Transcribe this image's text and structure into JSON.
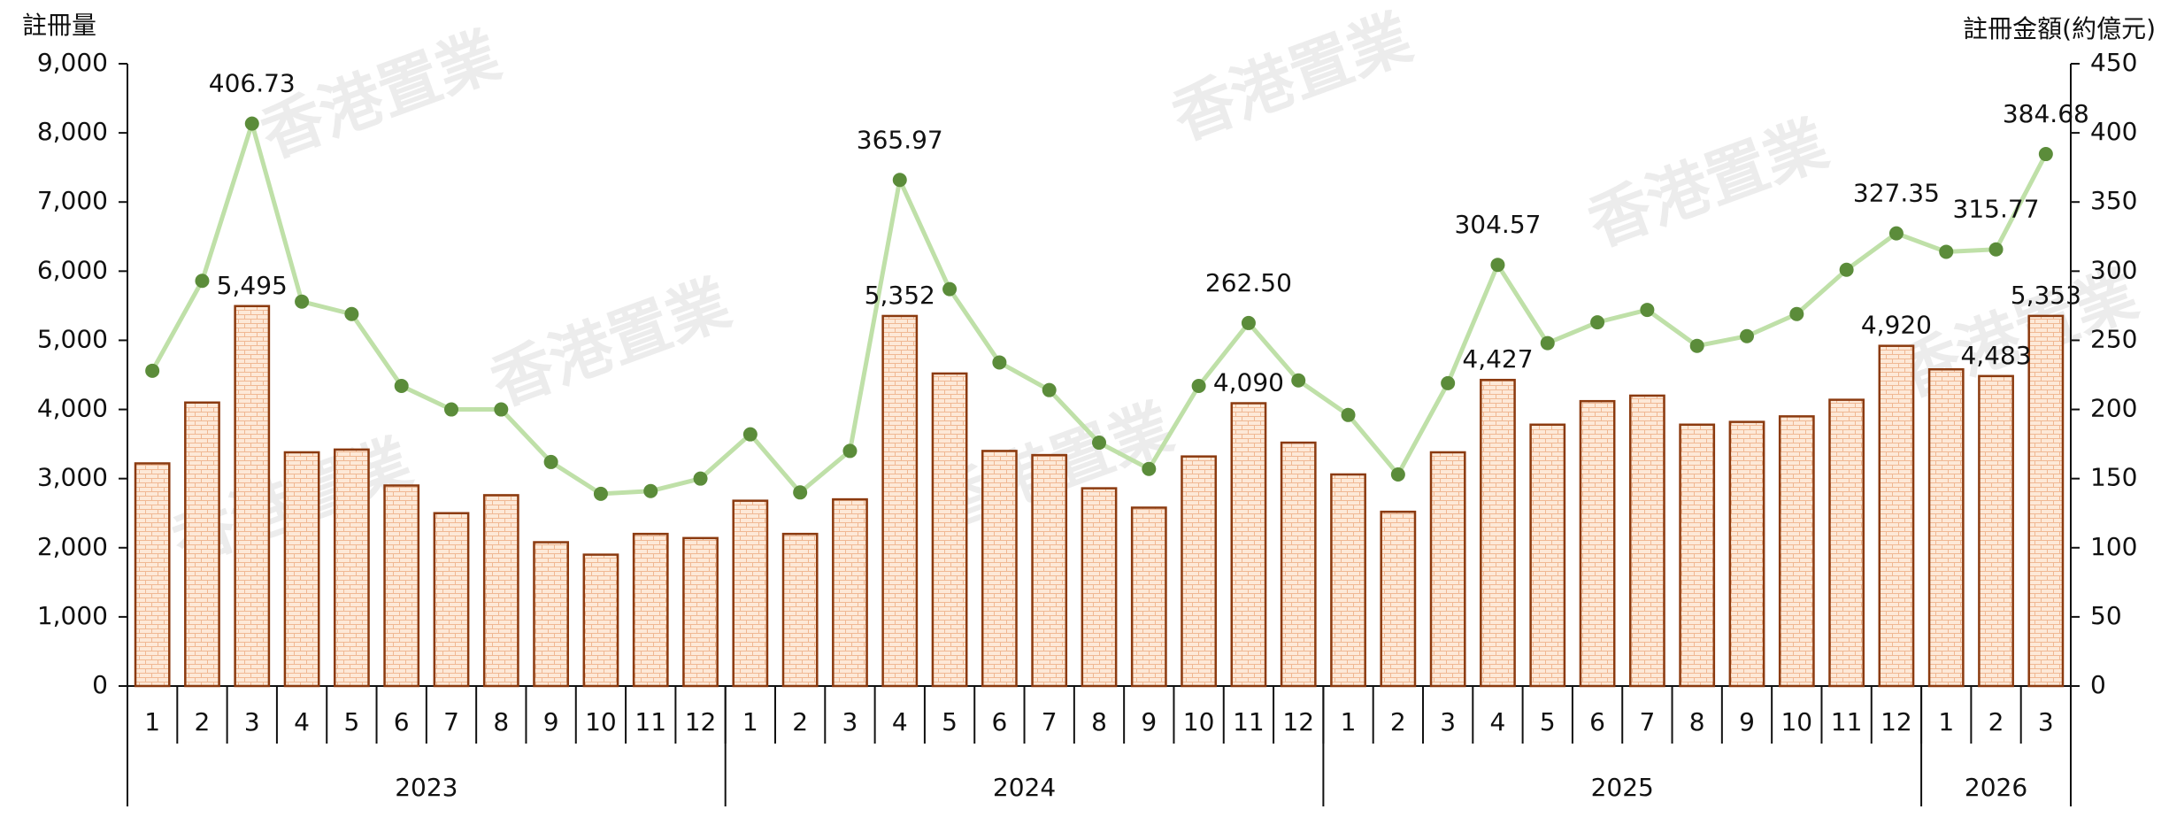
{
  "chart_data": {
    "type": "bar_line",
    "y_label": "註冊量",
    "y2_label": "註冊金額(約億元)",
    "watermark": "香港置業",
    "categories": [
      "1",
      "2",
      "3",
      "4",
      "5",
      "6",
      "7",
      "8",
      "9",
      "10",
      "11",
      "12",
      "1",
      "2",
      "3",
      "4",
      "5",
      "6",
      "7",
      "8",
      "9",
      "10",
      "11",
      "12",
      "1",
      "2",
      "3",
      "4",
      "5",
      "6",
      "7",
      "8",
      "9",
      "10",
      "11",
      "12",
      "1",
      "2",
      "3"
    ],
    "years": [
      "2023",
      "2024",
      "2025",
      "2026"
    ],
    "ylim": [
      0,
      9000
    ],
    "yticks": [
      0,
      {
        "value": 1000,
        "label": "1,000"
      },
      {
        "value": 2000,
        "label": "2,000"
      },
      {
        "value": 3000,
        "label": "3,000"
      },
      {
        "value": 4000,
        "label": "4,000"
      },
      {
        "value": 5000,
        "label": "5,000"
      },
      {
        "value": 6000,
        "label": "6,000"
      },
      {
        "value": 7000,
        "label": "7,000"
      },
      {
        "value": 8000,
        "label": "8,000"
      },
      {
        "value": 9000,
        "label": "9,000"
      }
    ],
    "y2lim": [
      0,
      450
    ],
    "y2ticks": [
      0,
      50,
      100,
      150,
      200,
      250,
      300,
      350,
      400,
      450
    ],
    "series": [
      {
        "type": "bar",
        "color": "#fbe3cf",
        "edge_color": "#8b3a0f",
        "values": [
          3220,
          4100,
          5495,
          3380,
          3420,
          2900,
          2500,
          2760,
          2080,
          1900,
          2200,
          2140,
          2680,
          2200,
          2700,
          5352,
          4520,
          3400,
          3340,
          2860,
          2580,
          3320,
          4090,
          3520,
          3060,
          2520,
          3380,
          4427,
          3780,
          4120,
          4200,
          3780,
          3820,
          3900,
          4140,
          4920,
          4580,
          4483,
          5353
        ],
        "value_labels": [
          null,
          null,
          "5,495",
          null,
          null,
          null,
          null,
          null,
          null,
          null,
          null,
          null,
          null,
          null,
          null,
          "5,352",
          null,
          null,
          null,
          null,
          null,
          null,
          "4,090",
          null,
          null,
          null,
          null,
          "4,427",
          null,
          null,
          null,
          null,
          null,
          null,
          null,
          "4,920",
          null,
          "4,483",
          "5,353"
        ]
      },
      {
        "type": "line",
        "axis": "y2",
        "color": "#bfe0a8",
        "marker_color": "#5b8c3a",
        "values": [
          228,
          293,
          406.73,
          278,
          269,
          217,
          200,
          200,
          162,
          139,
          141,
          150,
          182,
          140,
          170,
          365.97,
          287,
          234,
          214,
          176,
          157,
          217,
          262.5,
          221,
          196,
          153,
          219,
          304.57,
          248,
          263,
          272,
          246,
          253,
          269,
          301,
          327.35,
          314,
          315.77,
          384.68
        ],
        "value_labels": [
          null,
          null,
          "406.73",
          null,
          null,
          null,
          null,
          null,
          null,
          null,
          null,
          null,
          null,
          null,
          null,
          "365.97",
          null,
          null,
          null,
          null,
          null,
          null,
          "262.50",
          null,
          null,
          null,
          null,
          "304.57",
          null,
          null,
          null,
          null,
          null,
          null,
          null,
          "327.35",
          null,
          "315.77",
          "384.68"
        ]
      }
    ]
  }
}
